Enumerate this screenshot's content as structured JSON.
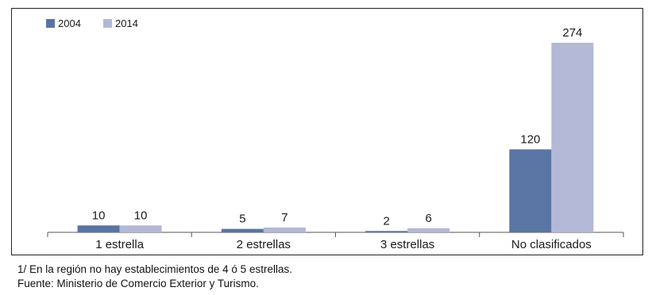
{
  "chart_data": {
    "type": "bar",
    "categories": [
      "1 estrella",
      "2 estrellas",
      "3 estrellas",
      "No clasificados"
    ],
    "series": [
      {
        "name": "2004",
        "values": [
          10,
          5,
          2,
          120
        ],
        "color": "#5975a4"
      },
      {
        "name": "2014",
        "values": [
          10,
          7,
          6,
          274
        ],
        "color": "#b3b8d6"
      }
    ],
    "ylim": [
      0,
      274
    ],
    "grid": false,
    "legend_position": "top-left"
  },
  "notes": {
    "line1": "1/ En la región no hay establecimientos de 4 ó 5 estrellas.",
    "line2": "Fuente: Ministerio de Comercio Exterior y Turismo."
  }
}
